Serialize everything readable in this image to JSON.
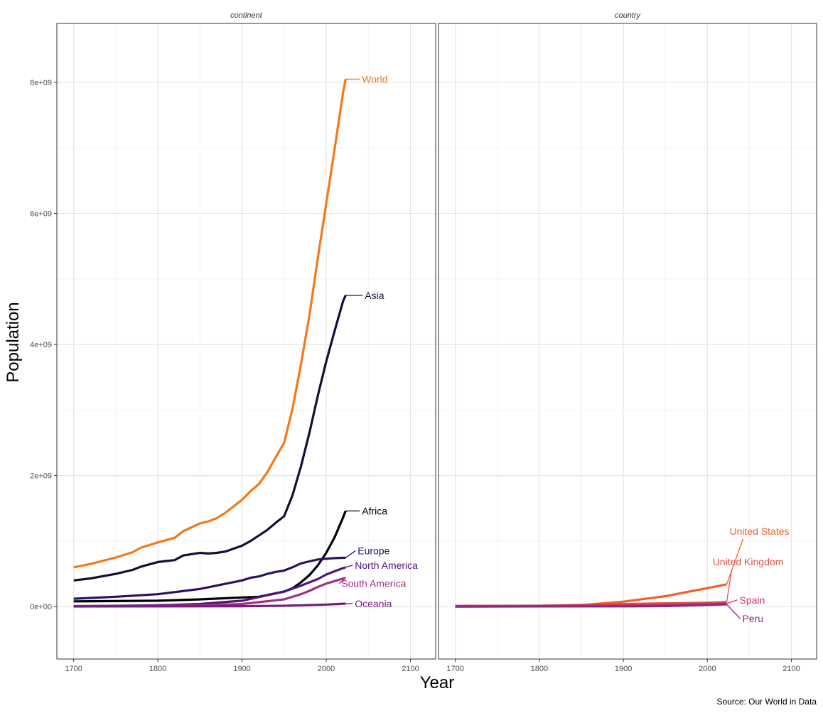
{
  "chart_data": {
    "type": "line",
    "xlabel": "Year",
    "ylabel": "Population",
    "caption": "Source: Our World in Data",
    "xlim": [
      1680,
      2130
    ],
    "ylim": [
      -800000000.0,
      8900000000.0
    ],
    "x_ticks": [
      1700,
      1800,
      1900,
      2000,
      2100
    ],
    "y_ticks": [
      0,
      2000000000.0,
      4000000000.0,
      6000000000.0,
      8000000000.0
    ],
    "y_tick_labels": [
      "0e+00",
      "2e+09",
      "4e+09",
      "6e+09",
      "8e+09"
    ],
    "grid": true,
    "legend": "none",
    "facets": [
      {
        "title": "continent",
        "series": [
          {
            "name": "World",
            "color": "#f37819",
            "x": [
              1700,
              1720,
              1750,
              1770,
              1780,
              1800,
              1820,
              1830,
              1850,
              1860,
              1870,
              1880,
              1890,
              1900,
              1910,
              1920,
              1930,
              1940,
              1950,
              1960,
              1970,
              1980,
              1990,
              2000,
              2010,
              2020,
              2023
            ],
            "y": [
              600000000.0,
              650000000.0,
              750000000.0,
              830000000.0,
              900000000.0,
              980000000.0,
              1050000000.0,
              1150000000.0,
              1270000000.0,
              1300000000.0,
              1350000000.0,
              1430000000.0,
              1530000000.0,
              1630000000.0,
              1760000000.0,
              1870000000.0,
              2050000000.0,
              2280000000.0,
              2500000000.0,
              3020000000.0,
              3700000000.0,
              4440000000.0,
              5320000000.0,
              6150000000.0,
              6990000000.0,
              7840000000.0,
              8050000000.0
            ]
          },
          {
            "name": "Asia",
            "color": "#150e37",
            "x": [
              1700,
              1720,
              1750,
              1770,
              1780,
              1800,
              1820,
              1830,
              1850,
              1860,
              1870,
              1880,
              1900,
              1910,
              1930,
              1940,
              1950,
              1960,
              1970,
              1980,
              1990,
              2000,
              2010,
              2020,
              2023
            ],
            "y": [
              400000000.0,
              430000000.0,
              500000000.0,
              560000000.0,
              610000000.0,
              680000000.0,
              710000000.0,
              780000000.0,
              820000000.0,
              810000000.0,
              820000000.0,
              840000000.0,
              930000000.0,
              1000000000.0,
              1170000000.0,
              1280000000.0,
              1380000000.0,
              1700000000.0,
              2140000000.0,
              2650000000.0,
              3220000000.0,
              3740000000.0,
              4210000000.0,
              4660000000.0,
              4750000000.0
            ]
          },
          {
            "name": "Africa",
            "color": "#000004",
            "x": [
              1700,
              1800,
              1850,
              1900,
              1920,
              1950,
              1960,
              1970,
              1980,
              1990,
              2000,
              2010,
              2020,
              2023
            ],
            "y": [
              80000000.0,
              90000000.0,
              110000000.0,
              140000000.0,
              150000000.0,
              230000000.0,
              280000000.0,
              370000000.0,
              480000000.0,
              630000000.0,
              820000000.0,
              1060000000.0,
              1360000000.0,
              1460000000.0
            ]
          },
          {
            "name": "Europe",
            "color": "#2d1160",
            "x": [
              1700,
              1750,
              1800,
              1850,
              1900,
              1910,
              1920,
              1930,
              1940,
              1950,
              1960,
              1970,
              1980,
              1990,
              2000,
              2010,
              2023
            ],
            "y": [
              120000000.0,
              150000000.0,
              190000000.0,
              270000000.0,
              400000000.0,
              440000000.0,
              460000000.0,
              500000000.0,
              530000000.0,
              550000000.0,
              600000000.0,
              660000000.0,
              690000000.0,
              720000000.0,
              730000000.0,
              740000000.0,
              745000000.0
            ]
          },
          {
            "name": "North America",
            "color": "#51127c",
            "x": [
              1700,
              1800,
              1850,
              1900,
              1950,
              1970,
              1980,
              1990,
              2000,
              2010,
              2023
            ],
            "y": [
              5000000.0,
              20000000.0,
              40000000.0,
              90000000.0,
              230000000.0,
              320000000.0,
              370000000.0,
              420000000.0,
              490000000.0,
              540000000.0,
              600000000.0
            ]
          },
          {
            "name": "South America",
            "color": "#a3307e",
            "x": [
              1700,
              1800,
              1850,
              1900,
              1950,
              1970,
              1980,
              1990,
              2000,
              2010,
              2023
            ],
            "y": [
              10000000.0,
              10000000.0,
              20000000.0,
              40000000.0,
              110000000.0,
              190000000.0,
              240000000.0,
              300000000.0,
              350000000.0,
              390000000.0,
              440000000.0
            ]
          },
          {
            "name": "Oceania",
            "color": "#721f81",
            "x": [
              1700,
              1900,
              1950,
              2000,
              2023
            ],
            "y": [
              2000000.0,
              6000000.0,
              13000000.0,
              31000000.0,
              45000000.0
            ]
          }
        ]
      },
      {
        "title": "country",
        "series": [
          {
            "name": "United States",
            "color": "#f0602a",
            "x": [
              1700,
              1800,
              1850,
              1900,
              1950,
              1970,
              2000,
              2023
            ],
            "y": [
              1000000.0,
              6000000.0,
              23000000.0,
              76000000.0,
              158000000.0,
              209000000.0,
              282000000.0,
              340000000.0
            ]
          },
          {
            "name": "United Kingdom",
            "color": "#e1503f",
            "x": [
              1700,
              1800,
              1900,
              1950,
              2000,
              2023
            ],
            "y": [
              9000000.0,
              12000000.0,
              40000000.0,
              50000000.0,
              59000000.0,
              68000000.0
            ]
          },
          {
            "name": "Spain",
            "color": "#c53a5c",
            "x": [
              1700,
              1900,
              1950,
              2000,
              2023
            ],
            "y": [
              8000000.0,
              18000000.0,
              28000000.0,
              41000000.0,
              48000000.0
            ]
          },
          {
            "name": "Peru",
            "color": "#8c2981",
            "x": [
              1700,
              1900,
              1950,
              2000,
              2023
            ],
            "y": [
              1000000.0,
              4000000.0,
              8000000.0,
              26000000.0,
              34000000.0
            ]
          }
        ]
      }
    ]
  }
}
